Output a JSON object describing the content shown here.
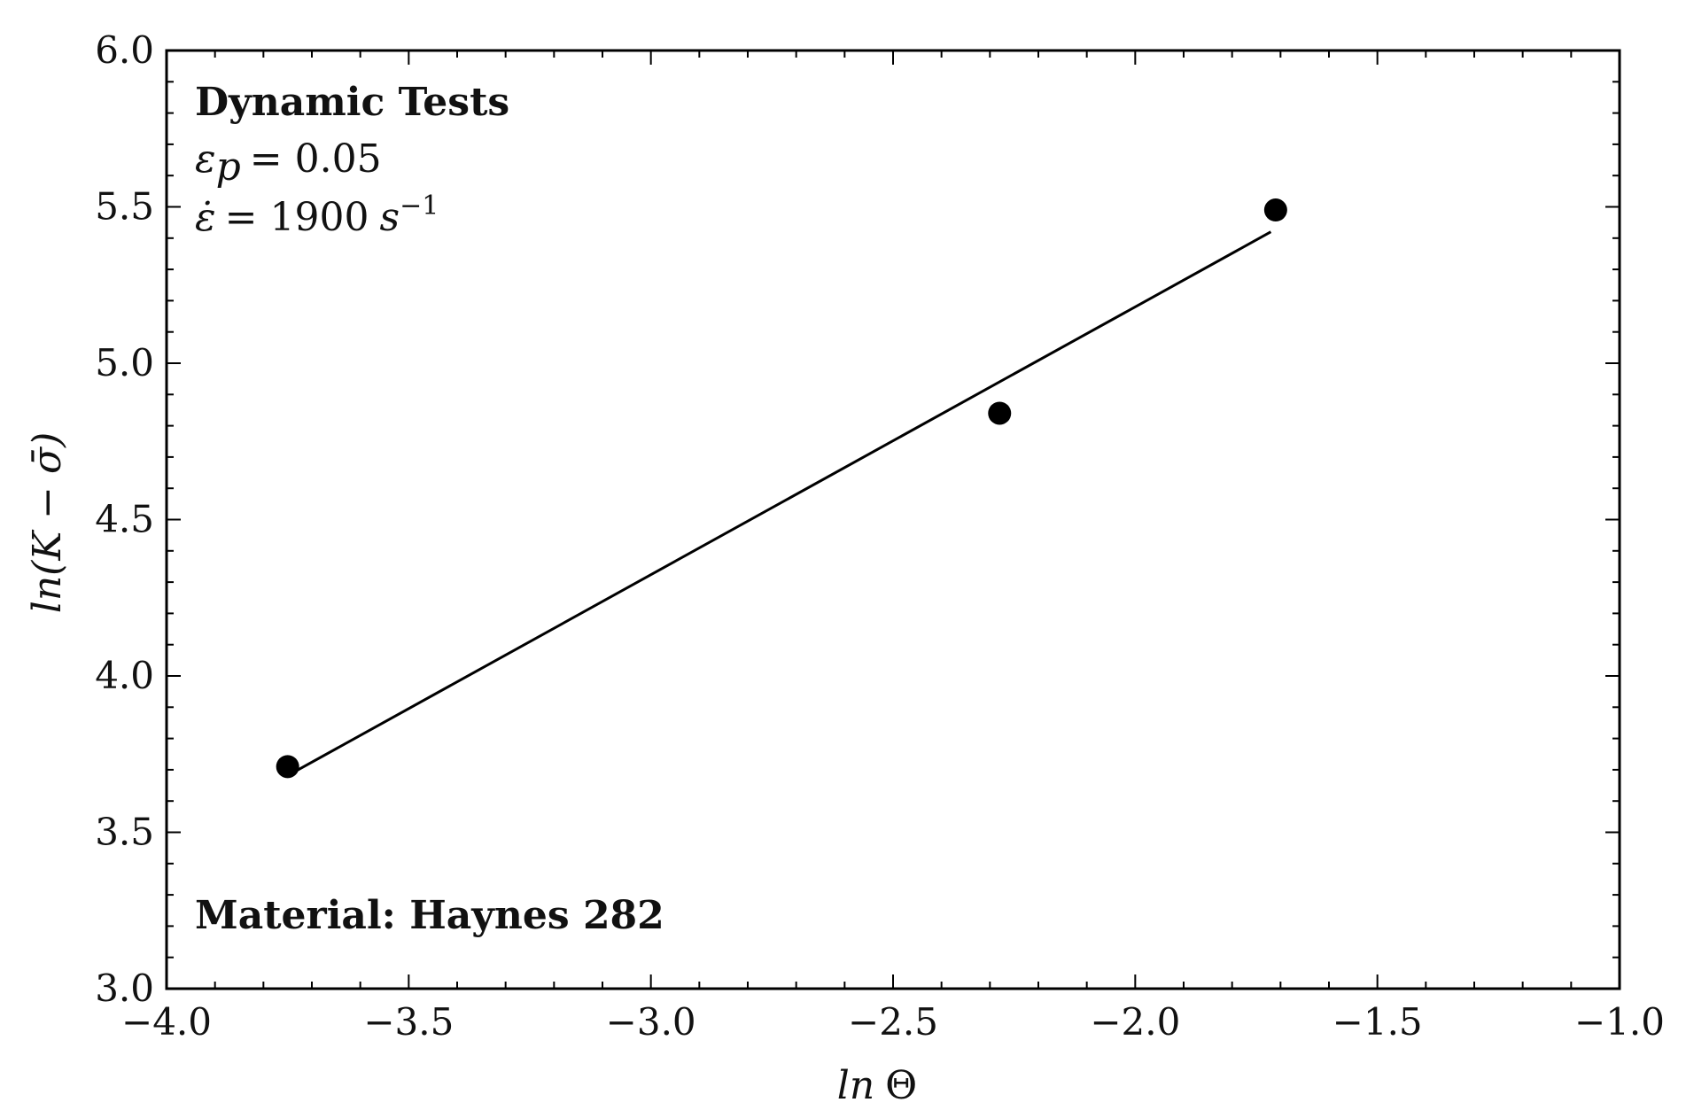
{
  "chart_data": {
    "type": "scatter",
    "xlabel_prefix": "ln",
    "xlabel_symbol": "Θ",
    "ylabel": "ln(K − σ̄)",
    "xlim": [
      -4.0,
      -1.0
    ],
    "ylim": [
      3.0,
      6.0
    ],
    "x_ticks": [
      -4.0,
      -3.5,
      -3.0,
      -2.5,
      -2.0,
      -1.5,
      -1.0
    ],
    "x_tick_labels": [
      "−4.0",
      "−3.5",
      "−3.0",
      "−2.5",
      "−2.0",
      "−1.5",
      "−1.0"
    ],
    "y_ticks": [
      3.0,
      3.5,
      4.0,
      4.5,
      5.0,
      5.5,
      6.0
    ],
    "y_tick_labels": [
      "3.0",
      "3.5",
      "4.0",
      "4.5",
      "5.0",
      "5.5",
      "6.0"
    ],
    "grid": false,
    "points": {
      "x": [
        -3.75,
        -2.28,
        -1.71
      ],
      "y": [
        3.71,
        4.84,
        5.49
      ]
    },
    "fit_line": {
      "x": [
        -3.74,
        -1.72
      ],
      "y": [
        3.69,
        5.42
      ]
    },
    "annotations": {
      "title": "Dynamic Tests",
      "eps_p_symbol": "ε",
      "eps_p_sub": "p",
      "eps_p_value": "= 0.05",
      "eps_dot_symbol": "ε̇",
      "eps_dot_value": "= 1900",
      "eps_dot_unit": "s",
      "eps_dot_exp": "−1",
      "material": "Material: Haynes 282"
    },
    "colors": {
      "marker": "#000000",
      "line": "#000000",
      "frame": "#000000"
    }
  }
}
